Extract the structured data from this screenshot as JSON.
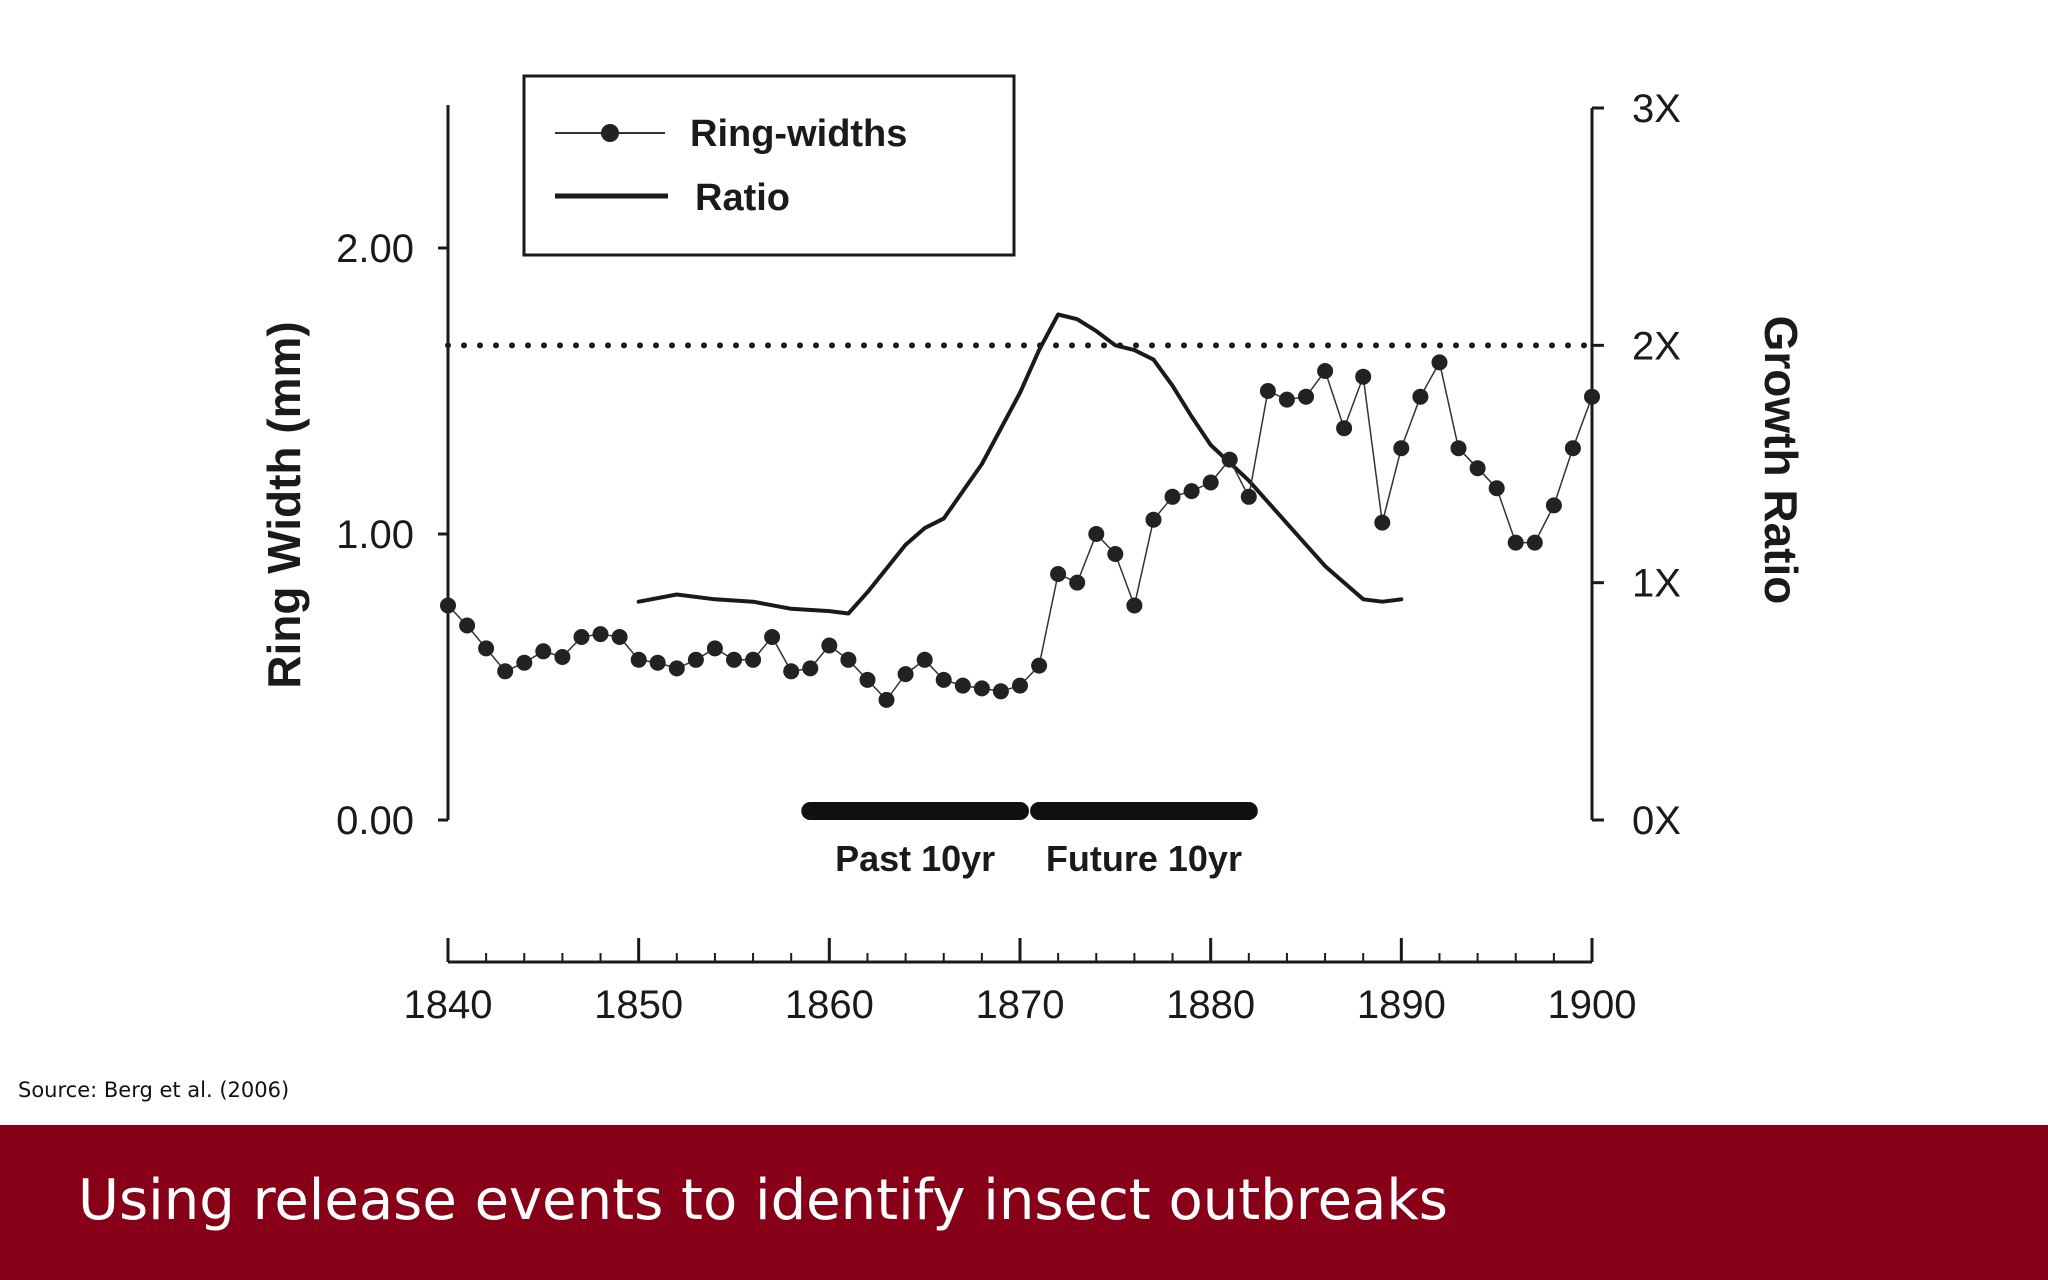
{
  "slide": {
    "source": "Source: Berg et al. (2006)",
    "title": "Using release events to identify insect outbreaks"
  },
  "chart_data": {
    "type": "line",
    "x_ticks": [
      "1840",
      "1850",
      "1860",
      "1870",
      "1880",
      "1890",
      "1900"
    ],
    "xlim": [
      1840,
      1900
    ],
    "ylabel": "Ring Width (mm)",
    "y_ticks": [
      "0.00",
      "1.00",
      "2.00"
    ],
    "ylim": [
      0,
      2.5
    ],
    "y2label": "Growth Ratio",
    "y2_ticks": [
      "0X",
      "1X",
      "2X",
      "3X"
    ],
    "y2lim": [
      0,
      3
    ],
    "threshold_ratio": 2,
    "legend": {
      "position": "top-left",
      "entries": [
        "Ring-widths",
        "Ratio"
      ]
    },
    "periods": [
      {
        "label": "Past 10yr",
        "start": 1859,
        "end": 1870
      },
      {
        "label": "Future 10yr",
        "start": 1871,
        "end": 1882
      }
    ],
    "series": [
      {
        "name": "Ring-widths",
        "axis": "left",
        "marker": "circle",
        "x": [
          1840,
          1841,
          1842,
          1843,
          1844,
          1845,
          1846,
          1847,
          1848,
          1849,
          1850,
          1851,
          1852,
          1853,
          1854,
          1855,
          1856,
          1857,
          1858,
          1859,
          1860,
          1861,
          1862,
          1863,
          1864,
          1865,
          1866,
          1867,
          1868,
          1869,
          1870,
          1871,
          1872,
          1873,
          1874,
          1875,
          1876,
          1877,
          1878,
          1879,
          1880,
          1881,
          1882,
          1883,
          1884,
          1885,
          1886,
          1887,
          1888,
          1889,
          1890,
          1891,
          1892,
          1893,
          1894,
          1895,
          1896,
          1897,
          1898,
          1899,
          1900
        ],
        "y": [
          0.75,
          0.68,
          0.6,
          0.52,
          0.55,
          0.59,
          0.57,
          0.64,
          0.65,
          0.64,
          0.56,
          0.55,
          0.53,
          0.56,
          0.6,
          0.56,
          0.56,
          0.64,
          0.52,
          0.53,
          0.61,
          0.56,
          0.49,
          0.42,
          0.51,
          0.56,
          0.49,
          0.47,
          0.46,
          0.45,
          0.47,
          0.54,
          0.86,
          0.83,
          1.0,
          0.93,
          0.75,
          1.05,
          1.13,
          1.15,
          1.18,
          1.26,
          1.13,
          1.5,
          1.47,
          1.48,
          1.57,
          1.37,
          1.55,
          1.04,
          1.3,
          1.48,
          1.6,
          1.3,
          1.23,
          1.16,
          0.97,
          0.97,
          1.1,
          1.3,
          1.48
        ]
      },
      {
        "name": "Ratio",
        "axis": "right",
        "x": [
          1850,
          1852,
          1854,
          1856,
          1858,
          1860,
          1861,
          1862,
          1864,
          1865,
          1866,
          1868,
          1870,
          1871,
          1872,
          1873,
          1874,
          1875,
          1876,
          1877,
          1878,
          1879,
          1880,
          1882,
          1884,
          1886,
          1888,
          1889,
          1890
        ],
        "y": [
          0.92,
          0.95,
          0.93,
          0.92,
          0.89,
          0.88,
          0.87,
          0.96,
          1.16,
          1.23,
          1.27,
          1.5,
          1.8,
          1.98,
          2.13,
          2.11,
          2.06,
          2.0,
          1.98,
          1.94,
          1.83,
          1.7,
          1.58,
          1.43,
          1.25,
          1.07,
          0.93,
          0.92,
          0.93
        ]
      }
    ]
  }
}
